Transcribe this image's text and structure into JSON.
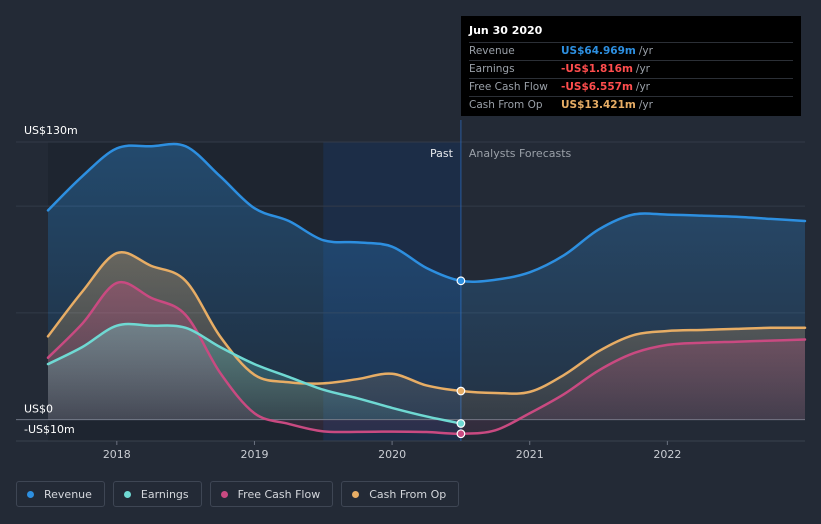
{
  "chart_data": {
    "type": "line",
    "x": [
      2017.5,
      2017.75,
      2018.0,
      2018.25,
      2018.5,
      2018.75,
      2019.0,
      2019.25,
      2019.5,
      2019.75,
      2020.0,
      2020.25,
      2020.5,
      2020.75,
      2021.0,
      2021.25,
      2021.5,
      2021.75,
      2022.0,
      2022.25,
      2022.5,
      2022.75,
      2023.0
    ],
    "x_past_end": 2020.5,
    "xlim": [
      2017.5,
      2023.0
    ],
    "ylim": [
      -10,
      130
    ],
    "x_ticks": [
      {
        "value": 2018,
        "label": "2018"
      },
      {
        "value": 2019,
        "label": "2019"
      },
      {
        "value": 2020,
        "label": "2020"
      },
      {
        "value": 2021,
        "label": "2021"
      },
      {
        "value": 2022,
        "label": "2022"
      }
    ],
    "y_ticks": [
      {
        "value": 130,
        "label": "US$130m"
      },
      {
        "value": 0,
        "label": "US$0"
      },
      {
        "value": -10,
        "label": "-US$10m"
      }
    ],
    "past_label": "Past",
    "forecast_label": "Analysts Forecasts",
    "series": [
      {
        "name": "Revenue",
        "color": "#2d8fe0",
        "values": [
          98,
          114,
          127,
          128,
          128,
          114,
          99,
          93,
          84,
          83,
          81,
          71,
          65,
          65.5,
          69,
          77,
          89,
          96,
          96,
          95.5,
          95,
          94,
          93
        ]
      },
      {
        "name": "Earnings",
        "color": "#6fd9d3",
        "values": [
          26,
          34,
          44,
          44,
          43,
          34,
          26,
          20,
          14,
          10,
          5.5,
          1.5,
          -1.8,
          null,
          null,
          null,
          null,
          null,
          null,
          null,
          null,
          null,
          null
        ]
      },
      {
        "name": "Free Cash Flow",
        "color": "#c94a81",
        "values": [
          29,
          45,
          64,
          57,
          49,
          22,
          3,
          -2,
          -5.5,
          -5.7,
          -5.6,
          -5.8,
          -6.6,
          -5,
          3,
          12,
          23,
          31,
          35,
          36,
          36.5,
          37,
          37.5
        ]
      },
      {
        "name": "Cash From Op",
        "color": "#e7ad65",
        "values": [
          39,
          60,
          78,
          72,
          65,
          39,
          21,
          17.5,
          17,
          19,
          21.5,
          16,
          13.4,
          12.5,
          13,
          21,
          32,
          39.5,
          41.5,
          42,
          42.5,
          43,
          43
        ]
      }
    ],
    "highlight": {
      "date": "Jun 30 2020",
      "rows": [
        {
          "label": "Revenue",
          "value": "US$64.969m",
          "unit": "/yr",
          "color": "#2d8fe0"
        },
        {
          "label": "Earnings",
          "value": "-US$1.816m",
          "unit": "/yr",
          "color": "#ff4d4d"
        },
        {
          "label": "Free Cash Flow",
          "value": "-US$6.557m",
          "unit": "/yr",
          "color": "#ff4d4d"
        },
        {
          "label": "Cash From Op",
          "value": "US$13.421m",
          "unit": "/yr",
          "color": "#e7ad65"
        }
      ]
    },
    "legend": [
      {
        "name": "Revenue",
        "color": "#2d8fe0"
      },
      {
        "name": "Earnings",
        "color": "#6fd9d3"
      },
      {
        "name": "Free Cash Flow",
        "color": "#c94a81"
      },
      {
        "name": "Cash From Op",
        "color": "#e7ad65"
      }
    ]
  }
}
